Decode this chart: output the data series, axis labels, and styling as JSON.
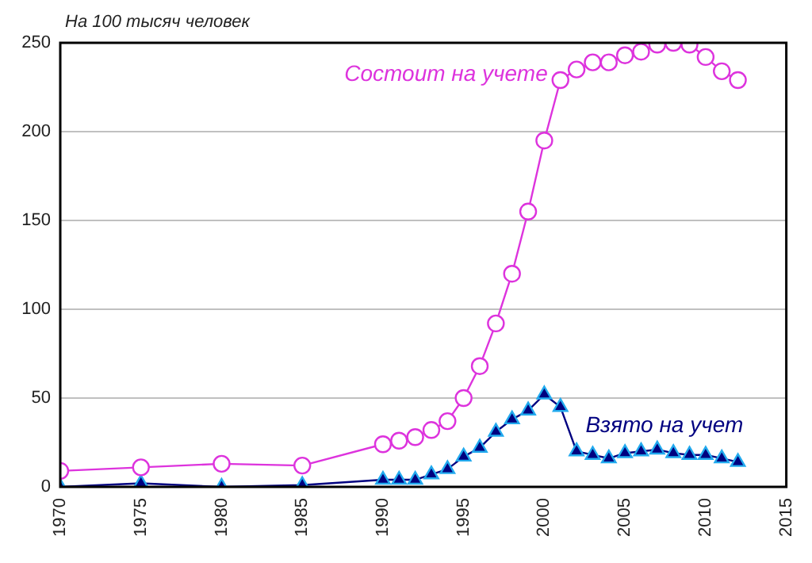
{
  "chart_data": {
    "type": "line",
    "ylabel": "На 100 тысяч человек",
    "x": [
      1970,
      1975,
      1980,
      1985,
      1990,
      1991,
      1992,
      1993,
      1994,
      1995,
      1996,
      1997,
      1998,
      1999,
      2000,
      2001,
      2002,
      2003,
      2004,
      2005,
      2006,
      2007,
      2008,
      2009,
      2010,
      2011,
      2012
    ],
    "series": [
      {
        "name": "Состоит на учете",
        "color": "#dd33dd",
        "marker": "circle",
        "values": [
          9,
          11,
          13,
          12,
          24,
          26,
          28,
          32,
          37,
          50,
          68,
          92,
          120,
          155,
          195,
          229,
          235,
          239,
          239,
          243,
          245,
          249,
          250,
          249,
          242,
          234,
          229
        ]
      },
      {
        "name": "Взято на учет",
        "color": "#000080",
        "marker": "triangle",
        "values": [
          0,
          2,
          0,
          1,
          4,
          4,
          4,
          7,
          10,
          17,
          22,
          31,
          38,
          43,
          52,
          45,
          20,
          18,
          16,
          19,
          20,
          21,
          19,
          18,
          18,
          16,
          14
        ]
      }
    ],
    "xlim": [
      1970,
      2015
    ],
    "xticks": [
      1970,
      1975,
      1980,
      1985,
      1990,
      1995,
      2000,
      2005,
      2010,
      2015
    ],
    "ylim": [
      0,
      250
    ],
    "yticks": [
      0,
      50,
      100,
      150,
      200,
      250
    ],
    "grid": "y",
    "legend": false
  }
}
